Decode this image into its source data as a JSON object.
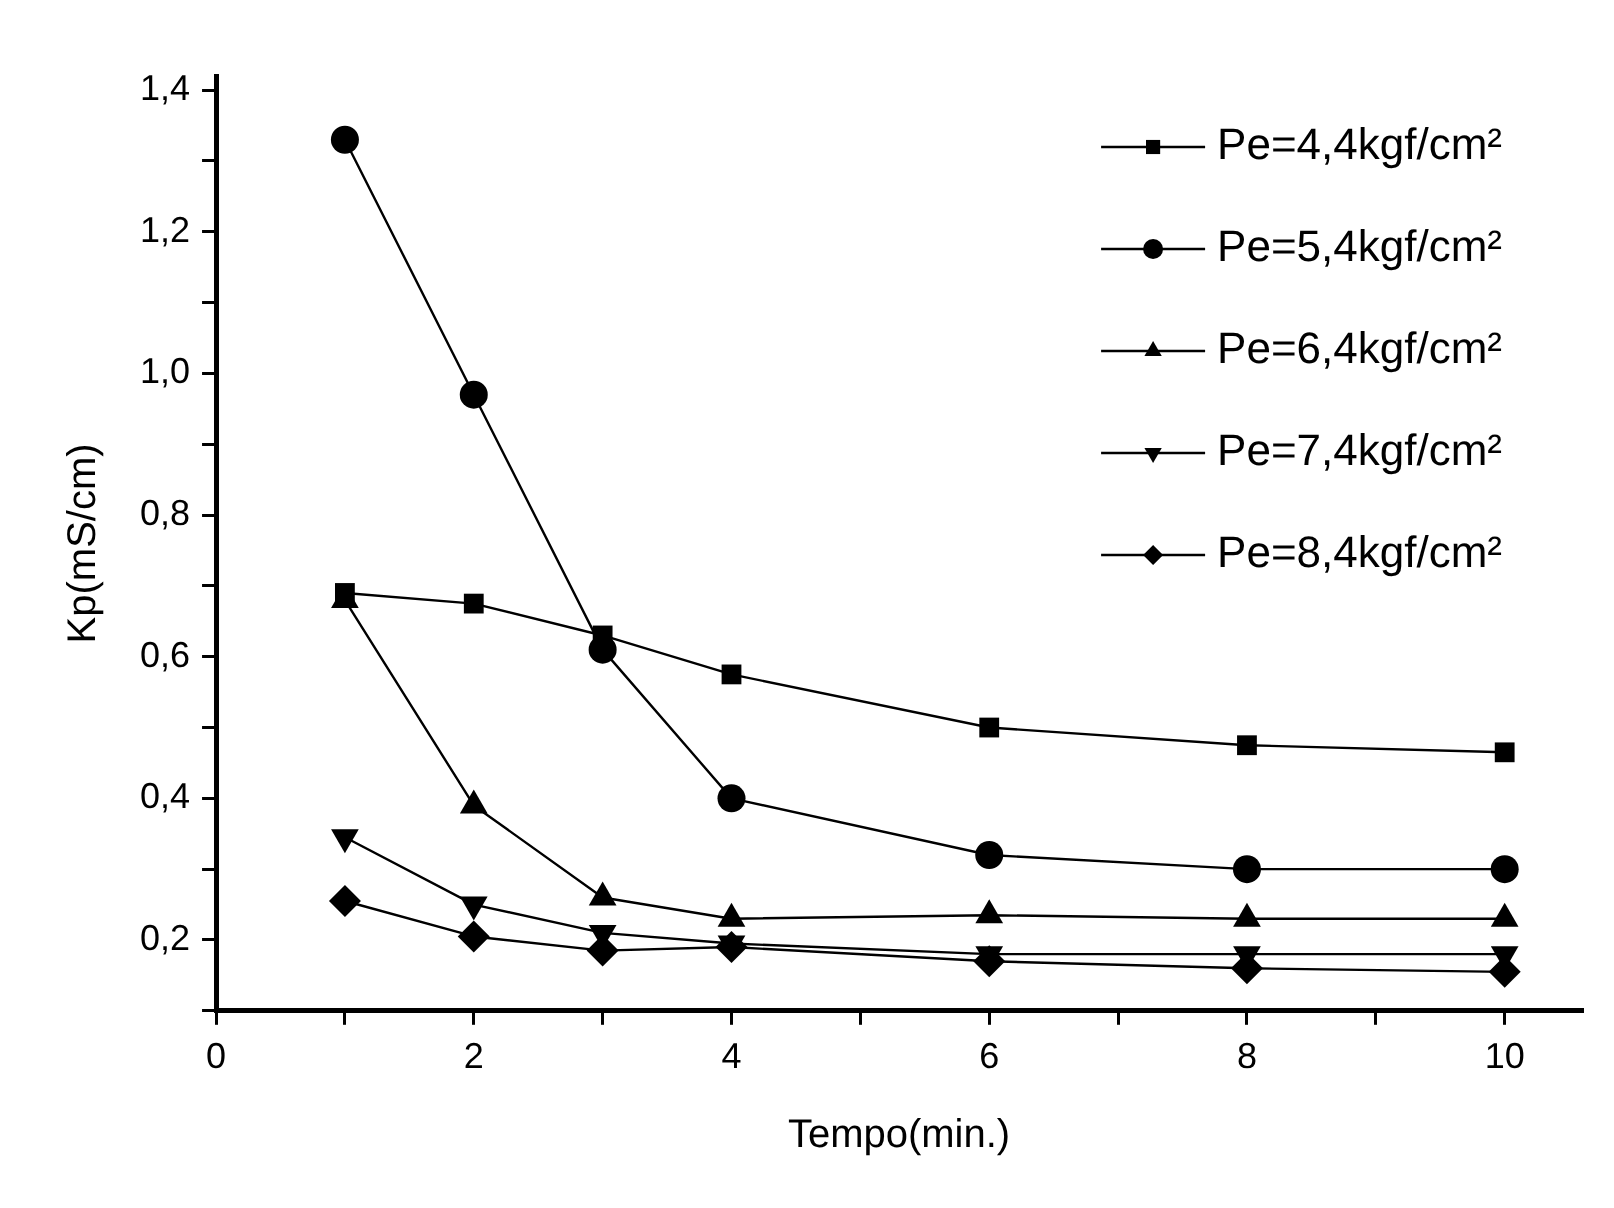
{
  "chart_data": {
    "type": "line",
    "xlabel": "Tempo(min.)",
    "ylabel": "Kp(mS/cm)",
    "xlim": [
      0,
      10.6
    ],
    "xticks": [
      0,
      {
        "value": 1,
        "label": null
      },
      2,
      {
        "value": 3,
        "label": null
      },
      4,
      {
        "value": 5,
        "label": null
      },
      6,
      {
        "value": 7,
        "label": null
      },
      8,
      {
        "value": 9,
        "label": null
      },
      10
    ],
    "ylim": [
      0.1,
      1.42
    ],
    "yticks": [
      {
        "value": 0.1,
        "label": null
      },
      {
        "value": 0.2,
        "label": "0,2"
      },
      {
        "value": 0.3,
        "label": null
      },
      {
        "value": 0.4,
        "label": "0,4"
      },
      {
        "value": 0.5,
        "label": null
      },
      {
        "value": 0.6,
        "label": "0,6"
      },
      {
        "value": 0.7,
        "label": null
      },
      {
        "value": 0.8,
        "label": "0,8"
      },
      {
        "value": 0.9,
        "label": null
      },
      {
        "value": 1.0,
        "label": "1,0"
      },
      {
        "value": 1.1,
        "label": null
      },
      {
        "value": 1.2,
        "label": "1,2"
      },
      {
        "value": 1.3,
        "label": null
      },
      {
        "value": 1.4,
        "label": "1,4"
      }
    ],
    "x": [
      1,
      2,
      3,
      4,
      6,
      8,
      10
    ],
    "legend": "top right",
    "line_style": "solid",
    "series": [
      {
        "name": "Pe=4,4kgf/cm²",
        "color": "#000000",
        "marker": "square",
        "values": [
          0.69,
          0.675,
          0.63,
          0.575,
          0.5,
          0.475,
          0.465
        ]
      },
      {
        "name": "Pe=5,4kgf/cm²",
        "color": "#000000",
        "marker": "circle",
        "values": [
          1.33,
          0.97,
          0.61,
          0.4,
          0.32,
          0.3,
          0.3
        ]
      },
      {
        "name": "Pe=6,4kgf/cm²",
        "color": "#000000",
        "marker": "triangle",
        "values": [
          0.68,
          0.39,
          0.26,
          0.23,
          0.235,
          0.23,
          0.23
        ]
      },
      {
        "name": "Pe=7,4kgf/cm²",
        "color": "#000000",
        "marker": "triangle-down",
        "values": [
          0.345,
          0.25,
          0.21,
          0.195,
          0.18,
          0.18,
          0.18
        ]
      },
      {
        "name": "Pe=8,4kgf/cm²",
        "color": "#000000",
        "marker": "diamond",
        "values": [
          0.255,
          0.205,
          0.185,
          0.19,
          0.17,
          0.16,
          0.155
        ]
      }
    ]
  }
}
